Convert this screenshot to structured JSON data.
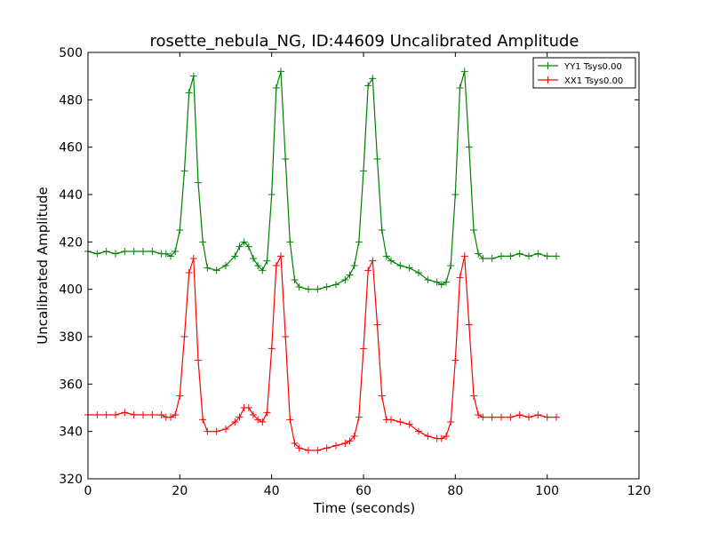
{
  "chart_data": {
    "type": "line",
    "title": "rosette_nebula_NG, ID:44609 Uncalibrated Amplitude",
    "xlabel": "Time (seconds)",
    "ylabel": "Uncalibrated Amplitude",
    "xlim": [
      0,
      120
    ],
    "ylim": [
      320,
      500
    ],
    "xticks": [
      0,
      20,
      40,
      60,
      80,
      100,
      120
    ],
    "yticks": [
      320,
      340,
      360,
      380,
      400,
      420,
      440,
      460,
      480,
      500
    ],
    "grid": false,
    "legend_position": "top-right",
    "marker": "plus",
    "x": [
      0,
      2,
      4,
      6,
      8,
      10,
      12,
      14,
      16,
      17,
      18,
      19,
      20,
      21,
      22,
      23,
      24,
      25,
      26,
      28,
      30,
      32,
      33,
      34,
      35,
      36,
      37,
      38,
      39,
      40,
      41,
      42,
      43,
      44,
      45,
      46,
      48,
      50,
      52,
      54,
      56,
      57,
      58,
      59,
      60,
      61,
      62,
      63,
      64,
      65,
      66,
      68,
      70,
      72,
      74,
      76,
      77,
      78,
      79,
      80,
      81,
      82,
      83,
      84,
      85,
      86,
      88,
      90,
      92,
      94,
      96,
      98,
      100,
      102
    ],
    "series": [
      {
        "name": "YY1 Tsys0.00",
        "color": "#008000",
        "values": [
          416,
          415,
          416,
          415,
          416,
          416,
          416,
          416,
          415,
          415,
          414,
          416,
          425,
          450,
          483,
          490,
          445,
          420,
          409,
          408,
          410,
          414,
          418,
          420,
          418,
          413,
          410,
          408,
          412,
          440,
          485,
          492,
          455,
          420,
          404,
          401,
          400,
          400,
          401,
          402,
          404,
          406,
          410,
          420,
          450,
          486,
          489,
          455,
          425,
          414,
          412,
          410,
          409,
          407,
          404,
          403,
          402,
          403,
          410,
          440,
          485,
          492,
          460,
          425,
          415,
          413,
          413,
          414,
          414,
          415,
          414,
          415,
          414,
          414
        ]
      },
      {
        "name": "XX1 Tsys0.00",
        "color": "#ff0000",
        "values": [
          347,
          347,
          347,
          347,
          348,
          347,
          347,
          347,
          347,
          346,
          346,
          347,
          355,
          380,
          407,
          413,
          370,
          345,
          340,
          340,
          341,
          344,
          346,
          350,
          350,
          347,
          345,
          344,
          348,
          375,
          410,
          414,
          380,
          345,
          335,
          333,
          332,
          332,
          333,
          334,
          335,
          336,
          338,
          346,
          375,
          408,
          412,
          385,
          355,
          345,
          345,
          344,
          343,
          340,
          338,
          337,
          337,
          338,
          344,
          370,
          405,
          414,
          385,
          355,
          347,
          346,
          346,
          346,
          346,
          347,
          346,
          347,
          346,
          346
        ]
      }
    ]
  }
}
